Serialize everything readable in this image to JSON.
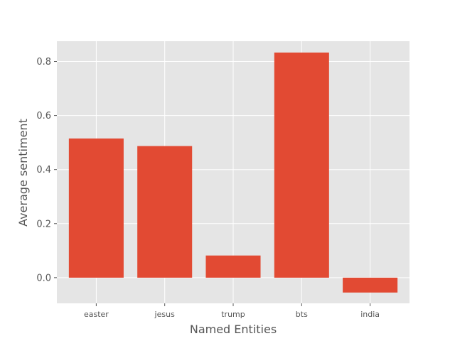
{
  "chart_data": {
    "type": "bar",
    "title": "",
    "xlabel": "Named Entities",
    "ylabel": "Average sentiment",
    "categories": [
      "easter",
      "jesus",
      "trump",
      "bts",
      "india"
    ],
    "values": [
      0.515,
      0.487,
      0.082,
      0.833,
      -0.055
    ],
    "ylim": [
      -0.095,
      0.875
    ],
    "yticks": [
      0.0,
      0.2,
      0.4,
      0.6,
      0.8
    ],
    "ytick_labels": [
      "0.0",
      "0.2",
      "0.4",
      "0.6",
      "0.8"
    ],
    "grid": true,
    "style": "ggplot",
    "colors": {
      "bar": "#E24A33",
      "plot_background": "#E5E5E5",
      "grid": "#FFFFFF",
      "text": "#555555"
    }
  }
}
